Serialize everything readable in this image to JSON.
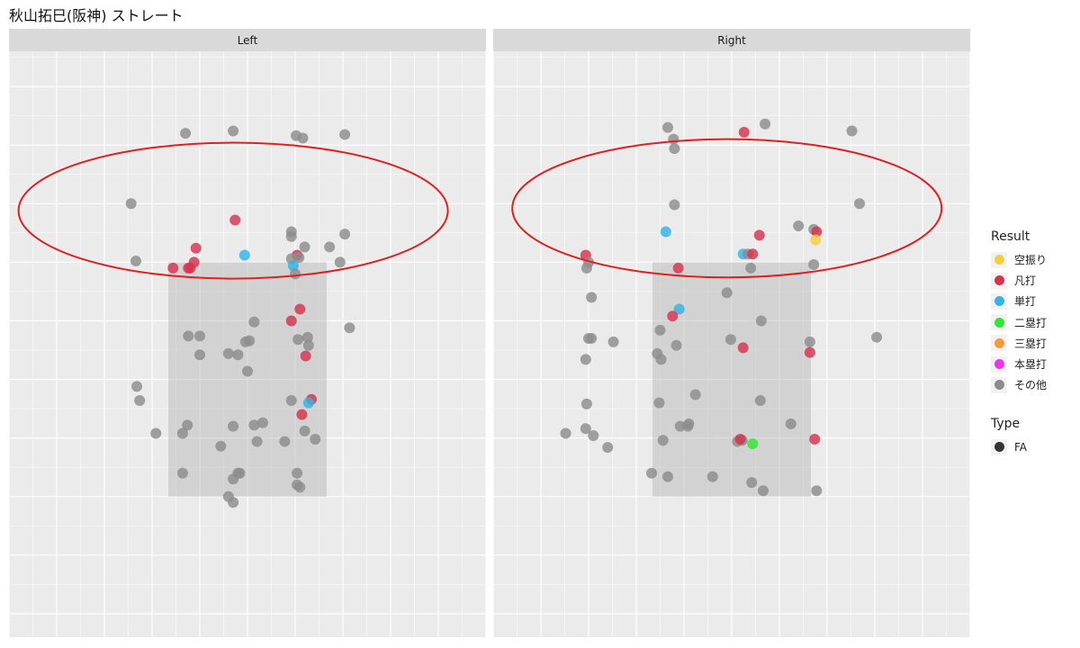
{
  "title": "秋山拓巳(阪神) ストレート",
  "chart_data": {
    "type": "scatter",
    "facets": [
      "Left",
      "Right"
    ],
    "xlim": [
      -2.5,
      2.5
    ],
    "ylim": [
      0.3,
      5.3
    ],
    "strike_zone": {
      "x": [
        -0.83,
        0.83
      ],
      "y": [
        1.5,
        3.5
      ]
    },
    "grid": true,
    "legend_position": "right",
    "result_legend": {
      "title": "Result",
      "entries": [
        {
          "label": "空振り",
          "color": "#f4d03f"
        },
        {
          "label": "凡打",
          "color": "#d6334f"
        },
        {
          "label": "単打",
          "color": "#33b3e6"
        },
        {
          "label": "二塁打",
          "color": "#33e633"
        },
        {
          "label": "三塁打",
          "color": "#f59a3a"
        },
        {
          "label": "本塁打",
          "color": "#f033f0"
        },
        {
          "label": "その他",
          "color": "#8c8c8c"
        }
      ]
    },
    "type_legend": {
      "title": "Type",
      "entries": [
        {
          "label": "FA",
          "color": "#333333"
        }
      ]
    },
    "panels": [
      {
        "facet": "Left",
        "points": [
          {
            "x": -0.65,
            "y": 4.6,
            "r": "その他"
          },
          {
            "x": -0.15,
            "y": 4.62,
            "r": "その他"
          },
          {
            "x": 0.51,
            "y": 4.58,
            "r": "その他"
          },
          {
            "x": 0.58,
            "y": 4.56,
            "r": "その他"
          },
          {
            "x": 1.02,
            "y": 4.59,
            "r": "その他"
          },
          {
            "x": -1.22,
            "y": 4.0,
            "r": "その他"
          },
          {
            "x": -0.13,
            "y": 3.86,
            "r": "凡打"
          },
          {
            "x": 0.46,
            "y": 3.76,
            "r": "その他"
          },
          {
            "x": 0.46,
            "y": 3.72,
            "r": "その他"
          },
          {
            "x": 1.02,
            "y": 3.74,
            "r": "その他"
          },
          {
            "x": -0.54,
            "y": 3.62,
            "r": "凡打"
          },
          {
            "x": 0.6,
            "y": 3.63,
            "r": "その他"
          },
          {
            "x": 0.86,
            "y": 3.63,
            "r": "その他"
          },
          {
            "x": -0.03,
            "y": 3.56,
            "r": "単打"
          },
          {
            "x": 0.52,
            "y": 3.56,
            "r": "凡打"
          },
          {
            "x": 0.54,
            "y": 3.54,
            "r": "その他"
          },
          {
            "x": 0.46,
            "y": 3.53,
            "r": "その他"
          },
          {
            "x": -1.17,
            "y": 3.51,
            "r": "その他"
          },
          {
            "x": -0.56,
            "y": 3.5,
            "r": "凡打"
          },
          {
            "x": 0.48,
            "y": 3.47,
            "r": "単打"
          },
          {
            "x": 0.97,
            "y": 3.5,
            "r": "その他"
          },
          {
            "x": -0.78,
            "y": 3.45,
            "r": "凡打"
          },
          {
            "x": -0.62,
            "y": 3.45,
            "r": "凡打"
          },
          {
            "x": -0.6,
            "y": 3.45,
            "r": "凡打"
          },
          {
            "x": 0.5,
            "y": 3.4,
            "r": "その他"
          },
          {
            "x": 0.55,
            "y": 3.1,
            "r": "凡打"
          },
          {
            "x": 0.46,
            "y": 3.0,
            "r": "凡打"
          },
          {
            "x": 0.07,
            "y": 2.99,
            "r": "その他"
          },
          {
            "x": 1.07,
            "y": 2.94,
            "r": "その他"
          },
          {
            "x": -0.62,
            "y": 2.87,
            "r": "その他"
          },
          {
            "x": -0.5,
            "y": 2.87,
            "r": "その他"
          },
          {
            "x": 0.53,
            "y": 2.84,
            "r": "その他"
          },
          {
            "x": 0.63,
            "y": 2.86,
            "r": "その他"
          },
          {
            "x": 0.02,
            "y": 2.83,
            "r": "その他"
          },
          {
            "x": -0.02,
            "y": 2.82,
            "r": "その他"
          },
          {
            "x": 0.64,
            "y": 2.79,
            "r": "その他"
          },
          {
            "x": -0.5,
            "y": 2.71,
            "r": "その他"
          },
          {
            "x": -0.2,
            "y": 2.72,
            "r": "その他"
          },
          {
            "x": -0.1,
            "y": 2.71,
            "r": "その他"
          },
          {
            "x": 0.61,
            "y": 2.7,
            "r": "凡打"
          },
          {
            "x": 0.0,
            "y": 2.57,
            "r": "その他"
          },
          {
            "x": -1.16,
            "y": 2.44,
            "r": "その他"
          },
          {
            "x": -1.13,
            "y": 2.32,
            "r": "その他"
          },
          {
            "x": 0.46,
            "y": 2.32,
            "r": "その他"
          },
          {
            "x": 0.67,
            "y": 2.33,
            "r": "凡打"
          },
          {
            "x": 0.64,
            "y": 2.3,
            "r": "単打"
          },
          {
            "x": 0.57,
            "y": 2.2,
            "r": "凡打"
          },
          {
            "x": 0.16,
            "y": 2.13,
            "r": "その他"
          },
          {
            "x": -0.63,
            "y": 2.11,
            "r": "その他"
          },
          {
            "x": -0.15,
            "y": 2.1,
            "r": "その他"
          },
          {
            "x": 0.07,
            "y": 2.11,
            "r": "その他"
          },
          {
            "x": 0.6,
            "y": 2.06,
            "r": "その他"
          },
          {
            "x": -0.96,
            "y": 2.04,
            "r": "その他"
          },
          {
            "x": -0.68,
            "y": 2.04,
            "r": "その他"
          },
          {
            "x": 0.71,
            "y": 1.99,
            "r": "その他"
          },
          {
            "x": 0.1,
            "y": 1.97,
            "r": "その他"
          },
          {
            "x": 0.39,
            "y": 1.97,
            "r": "その他"
          },
          {
            "x": -0.28,
            "y": 1.93,
            "r": "その他"
          },
          {
            "x": -0.68,
            "y": 1.7,
            "r": "その他"
          },
          {
            "x": -0.08,
            "y": 1.7,
            "r": "その他"
          },
          {
            "x": -0.1,
            "y": 1.7,
            "r": "その他"
          },
          {
            "x": 0.52,
            "y": 1.7,
            "r": "その他"
          },
          {
            "x": -0.15,
            "y": 1.65,
            "r": "その他"
          },
          {
            "x": 0.52,
            "y": 1.6,
            "r": "その他"
          },
          {
            "x": 0.55,
            "y": 1.58,
            "r": "その他"
          },
          {
            "x": -0.2,
            "y": 1.5,
            "r": "その他"
          },
          {
            "x": -0.15,
            "y": 1.45,
            "r": "その他"
          }
        ]
      },
      {
        "facet": "Right",
        "points": [
          {
            "x": -0.67,
            "y": 4.65,
            "r": "その他"
          },
          {
            "x": 0.13,
            "y": 4.61,
            "r": "凡打"
          },
          {
            "x": 0.35,
            "y": 4.68,
            "r": "その他"
          },
          {
            "x": 1.26,
            "y": 4.62,
            "r": "その他"
          },
          {
            "x": -0.61,
            "y": 4.55,
            "r": "その他"
          },
          {
            "x": -0.6,
            "y": 4.47,
            "r": "その他"
          },
          {
            "x": 1.34,
            "y": 4.0,
            "r": "その他"
          },
          {
            "x": -0.6,
            "y": 3.99,
            "r": "その他"
          },
          {
            "x": 0.7,
            "y": 3.81,
            "r": "その他"
          },
          {
            "x": 0.86,
            "y": 3.78,
            "r": "その他"
          },
          {
            "x": 0.89,
            "y": 3.76,
            "r": "凡打"
          },
          {
            "x": -0.69,
            "y": 3.76,
            "r": "単打"
          },
          {
            "x": 0.29,
            "y": 3.73,
            "r": "凡打"
          },
          {
            "x": 0.88,
            "y": 3.69,
            "r": "空振り"
          },
          {
            "x": 0.12,
            "y": 3.57,
            "r": "単打"
          },
          {
            "x": 0.17,
            "y": 3.57,
            "r": "その他"
          },
          {
            "x": 0.22,
            "y": 3.57,
            "r": "凡打"
          },
          {
            "x": -1.53,
            "y": 3.56,
            "r": "凡打"
          },
          {
            "x": -1.5,
            "y": 3.5,
            "r": "その他"
          },
          {
            "x": -0.56,
            "y": 3.45,
            "r": "凡打"
          },
          {
            "x": 0.2,
            "y": 3.45,
            "r": "その他"
          },
          {
            "x": 0.86,
            "y": 3.48,
            "r": "その他"
          },
          {
            "x": -1.52,
            "y": 3.45,
            "r": "その他"
          },
          {
            "x": -0.05,
            "y": 3.24,
            "r": "その他"
          },
          {
            "x": -1.47,
            "y": 3.2,
            "r": "その他"
          },
          {
            "x": -0.55,
            "y": 3.1,
            "r": "単打"
          },
          {
            "x": -0.62,
            "y": 3.04,
            "r": "凡打"
          },
          {
            "x": 0.31,
            "y": 3.0,
            "r": "その他"
          },
          {
            "x": -0.75,
            "y": 2.92,
            "r": "その他"
          },
          {
            "x": -1.5,
            "y": 2.85,
            "r": "その他"
          },
          {
            "x": -1.47,
            "y": 2.85,
            "r": "その他"
          },
          {
            "x": -1.24,
            "y": 2.82,
            "r": "その他"
          },
          {
            "x": -0.01,
            "y": 2.84,
            "r": "その他"
          },
          {
            "x": 0.82,
            "y": 2.82,
            "r": "その他"
          },
          {
            "x": 1.52,
            "y": 2.86,
            "r": "その他"
          },
          {
            "x": -0.58,
            "y": 2.79,
            "r": "その他"
          },
          {
            "x": 0.12,
            "y": 2.77,
            "r": "凡打"
          },
          {
            "x": 0.82,
            "y": 2.73,
            "r": "凡打"
          },
          {
            "x": -0.78,
            "y": 2.72,
            "r": "その他"
          },
          {
            "x": -0.74,
            "y": 2.67,
            "r": "その他"
          },
          {
            "x": -1.53,
            "y": 2.67,
            "r": "その他"
          },
          {
            "x": -0.38,
            "y": 2.37,
            "r": "その他"
          },
          {
            "x": 0.3,
            "y": 2.32,
            "r": "その他"
          },
          {
            "x": -0.76,
            "y": 2.3,
            "r": "その他"
          },
          {
            "x": -1.52,
            "y": 2.29,
            "r": "その他"
          },
          {
            "x": 0.62,
            "y": 2.12,
            "r": "その他"
          },
          {
            "x": -0.45,
            "y": 2.12,
            "r": "その他"
          },
          {
            "x": -0.54,
            "y": 2.1,
            "r": "その他"
          },
          {
            "x": -0.46,
            "y": 2.1,
            "r": "その他"
          },
          {
            "x": -1.53,
            "y": 2.08,
            "r": "その他"
          },
          {
            "x": -1.74,
            "y": 2.04,
            "r": "その他"
          },
          {
            "x": -1.45,
            "y": 2.02,
            "r": "その他"
          },
          {
            "x": -0.72,
            "y": 1.98,
            "r": "その他"
          },
          {
            "x": 0.11,
            "y": 1.98,
            "r": "その他"
          },
          {
            "x": 0.06,
            "y": 1.97,
            "r": "その他"
          },
          {
            "x": 0.09,
            "y": 1.99,
            "r": "凡打"
          },
          {
            "x": 0.87,
            "y": 1.99,
            "r": "凡打"
          },
          {
            "x": 0.22,
            "y": 1.95,
            "r": "二塁打"
          },
          {
            "x": -1.3,
            "y": 1.92,
            "r": "その他"
          },
          {
            "x": -0.84,
            "y": 1.7,
            "r": "その他"
          },
          {
            "x": -0.67,
            "y": 1.67,
            "r": "その他"
          },
          {
            "x": -0.2,
            "y": 1.67,
            "r": "その他"
          },
          {
            "x": 0.21,
            "y": 1.62,
            "r": "その他"
          },
          {
            "x": 0.33,
            "y": 1.55,
            "r": "その他"
          },
          {
            "x": 0.89,
            "y": 1.55,
            "r": "その他"
          }
        ]
      }
    ]
  },
  "annotations": [
    {
      "facet": "Left",
      "center": [
        -0.15,
        3.94
      ],
      "radii": [
        2.25,
        0.58
      ]
    },
    {
      "facet": "Right",
      "center": [
        -0.05,
        3.96
      ],
      "radii": [
        2.25,
        0.59
      ]
    }
  ]
}
